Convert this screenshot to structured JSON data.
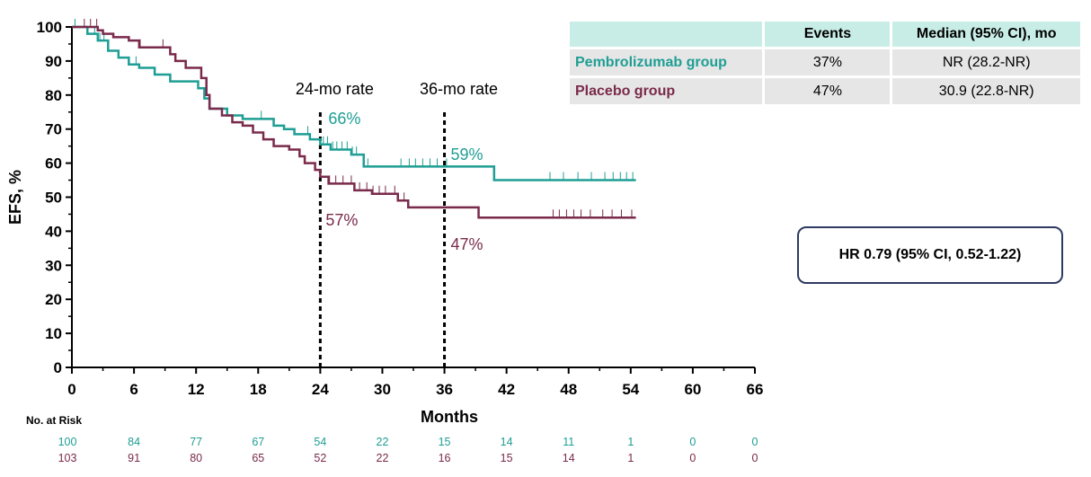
{
  "chart_data": {
    "type": "line",
    "subtype": "kaplan-meier step curve",
    "ylabel": "EFS, %",
    "xlabel": "Months",
    "xlim": [
      0,
      66
    ],
    "ylim": [
      0,
      100
    ],
    "x_ticks": [
      "0",
      "6",
      "12",
      "18",
      "24",
      "30",
      "36",
      "42",
      "48",
      "54",
      "60",
      "66"
    ],
    "y_ticks": [
      "0",
      "10",
      "20",
      "30",
      "40",
      "50",
      "60",
      "70",
      "80",
      "90",
      "100"
    ],
    "colors": {
      "pembrolizumab": "#1e9e94",
      "placebo": "#7a2a4b",
      "table_header_bg": "#c8ede6",
      "table_row_bg": "#e6e6e6",
      "hr_box_border": "#2f3a63"
    },
    "series": [
      {
        "name": "Pembrolizumab group",
        "key": "pembrolizumab",
        "steps": [
          [
            0,
            100
          ],
          [
            1.5,
            98
          ],
          [
            2.5,
            96
          ],
          [
            3.5,
            93
          ],
          [
            4.5,
            91
          ],
          [
            5.5,
            89
          ],
          [
            6.5,
            88
          ],
          [
            8,
            86
          ],
          [
            9.5,
            84
          ],
          [
            12.2,
            82
          ],
          [
            12.8,
            79
          ],
          [
            13.3,
            76
          ],
          [
            15,
            74
          ],
          [
            16.5,
            73
          ],
          [
            19.5,
            71
          ],
          [
            20.5,
            70
          ],
          [
            21.5,
            68.5
          ],
          [
            23,
            67
          ],
          [
            24,
            65.5
          ],
          [
            25,
            64
          ],
          [
            27,
            62.5
          ],
          [
            28.2,
            59
          ],
          [
            40.8,
            55
          ],
          [
            54.5,
            55
          ]
        ],
        "censor_x": [
          0.3,
          2.2,
          2.7,
          3.1,
          6.2,
          18.3,
          22.8,
          24.3,
          24.7,
          25.2,
          25.6,
          26.1,
          26.6,
          27.1,
          27.5,
          28.6,
          31.8,
          32.6,
          33.2,
          33.9,
          34.6,
          35.3,
          36.2,
          46.2,
          47.5,
          48.9,
          50.2,
          51.5,
          52.3,
          53,
          53.6,
          54.2
        ],
        "rate_24mo": "66%",
        "rate_36mo": "59%"
      },
      {
        "name": "Placebo group",
        "key": "placebo",
        "steps": [
          [
            0,
            100
          ],
          [
            2.5,
            99
          ],
          [
            3,
            98
          ],
          [
            4,
            97
          ],
          [
            5.5,
            96
          ],
          [
            6.5,
            94
          ],
          [
            9.5,
            92
          ],
          [
            10,
            90
          ],
          [
            11,
            88
          ],
          [
            12.5,
            85
          ],
          [
            13,
            80
          ],
          [
            13.3,
            76
          ],
          [
            14.5,
            74
          ],
          [
            15.5,
            72
          ],
          [
            16.5,
            71
          ],
          [
            17.5,
            69
          ],
          [
            18.5,
            67
          ],
          [
            19.5,
            65
          ],
          [
            21,
            64
          ],
          [
            22,
            62
          ],
          [
            22.5,
            60
          ],
          [
            23.5,
            58
          ],
          [
            24,
            56
          ],
          [
            24.8,
            54
          ],
          [
            27.3,
            52
          ],
          [
            29,
            51
          ],
          [
            31.5,
            49
          ],
          [
            32.5,
            47
          ],
          [
            39.3,
            44
          ],
          [
            54.5,
            44
          ]
        ],
        "censor_x": [
          1.2,
          1.8,
          2.4,
          6.6,
          8.8,
          24.9,
          25.5,
          26.2,
          27.0,
          27.8,
          28.5,
          29.1,
          29.7,
          30.3,
          31.2,
          32.1,
          46.5,
          47.1,
          47.8,
          48.5,
          49.2,
          50.1,
          51.3,
          52.2,
          53.1,
          54.1
        ],
        "rate_24mo": "57%",
        "rate_36mo": "47%"
      }
    ],
    "reference_lines": [
      {
        "x": 24,
        "label": "24-mo rate"
      },
      {
        "x": 36,
        "label": "36-mo rate"
      }
    ],
    "risk_table": {
      "header": "No. at Risk",
      "x": [
        0,
        6,
        12,
        18,
        24,
        30,
        36,
        42,
        48,
        54,
        60,
        66
      ],
      "rows": [
        {
          "key": "pembrolizumab",
          "values": [
            "100",
            "84",
            "77",
            "67",
            "54",
            "22",
            "15",
            "14",
            "11",
            "1",
            "0",
            "0"
          ]
        },
        {
          "key": "placebo",
          "values": [
            "103",
            "91",
            "80",
            "65",
            "52",
            "22",
            "16",
            "15",
            "14",
            "1",
            "0",
            "0"
          ]
        }
      ]
    }
  },
  "summary_table": {
    "headers": [
      "",
      "Events",
      "Median (95% CI), mo"
    ],
    "rows": [
      {
        "group": "Pembrolizumab group",
        "events": "37%",
        "median": "NR (28.2-NR)"
      },
      {
        "group": "Placebo group",
        "events": "47%",
        "median": "30.9 (22.8-NR)"
      }
    ]
  },
  "hr_text": "HR 0.79 (95% CI, 0.52-1.22)"
}
